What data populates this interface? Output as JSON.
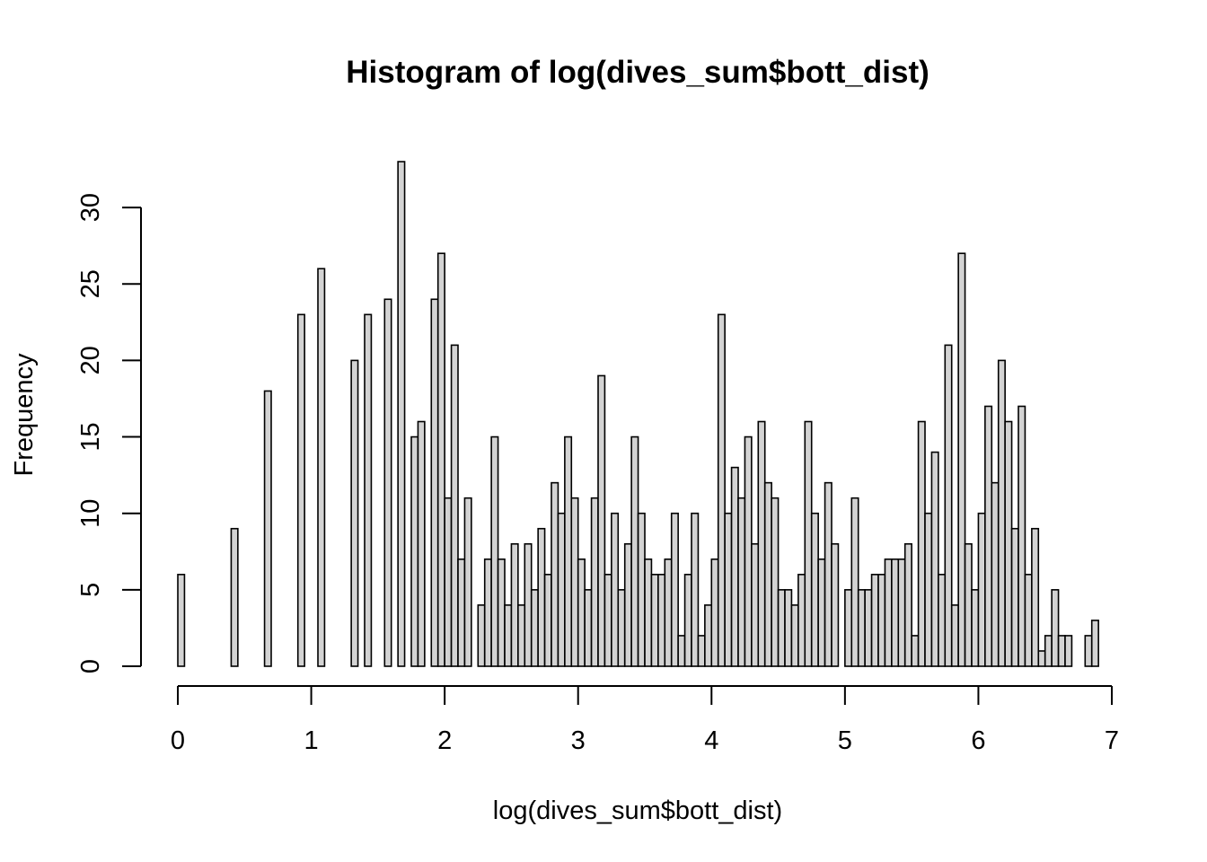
{
  "chart_data": {
    "type": "bar",
    "title": "Histogram of log(dives_sum$bott_dist)",
    "xlabel": "log(dives_sum$bott_dist)",
    "ylabel": "Frequency",
    "xlim": [
      0,
      7
    ],
    "ylim": [
      0,
      33
    ],
    "bin_width": 0.05,
    "x_ticks": [
      "0",
      "1",
      "2",
      "3",
      "4",
      "5",
      "6",
      "7"
    ],
    "y_ticks": [
      "0",
      "5",
      "10",
      "15",
      "20",
      "25",
      "30"
    ],
    "bin_start": 0,
    "counts": [
      6,
      0,
      0,
      0,
      0,
      0,
      0,
      0,
      9,
      0,
      0,
      0,
      0,
      18,
      0,
      0,
      0,
      0,
      23,
      0,
      0,
      26,
      0,
      0,
      0,
      0,
      20,
      0,
      23,
      0,
      0,
      24,
      0,
      33,
      0,
      15,
      16,
      0,
      24,
      27,
      11,
      21,
      7,
      11,
      0,
      4,
      7,
      15,
      7,
      4,
      8,
      4,
      8,
      5,
      9,
      6,
      12,
      10,
      15,
      11,
      7,
      5,
      11,
      19,
      6,
      10,
      5,
      8,
      15,
      10,
      7,
      6,
      6,
      7,
      10,
      2,
      6,
      10,
      2,
      4,
      7,
      23,
      10,
      13,
      11,
      15,
      8,
      16,
      12,
      11,
      5,
      5,
      4,
      6,
      16,
      10,
      7,
      12,
      8,
      0,
      5,
      11,
      5,
      5,
      6,
      6,
      7,
      7,
      7,
      8,
      2,
      16,
      10,
      14,
      6,
      21,
      4,
      27,
      8,
      5,
      10,
      17,
      12,
      20,
      16,
      9,
      17,
      6,
      9,
      1,
      2,
      5,
      2,
      2,
      0,
      0,
      2,
      3
    ],
    "bar_fill": "#d3d3d3",
    "bar_stroke": "#000000",
    "grid": false
  }
}
